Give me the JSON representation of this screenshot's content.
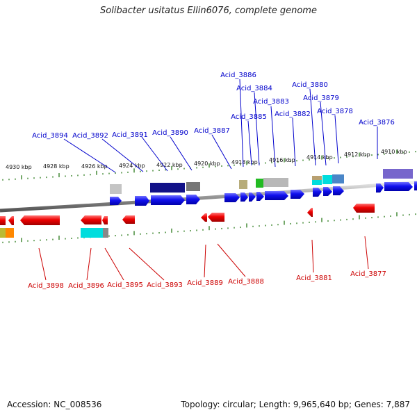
{
  "title": "Solibacter usitatus Ellin6076, complete genome",
  "footer": {
    "accession": "Accession: NC_008536",
    "summary": "Topology: circular; Length: 9,965,640 bp; Genes: 7,887"
  },
  "colors": {
    "forward_gene": "#0000ee",
    "reverse_gene": "#ee0000",
    "forward_label": "#0000cc",
    "reverse_label": "#cc0000",
    "tick": "#2a7a1a",
    "backbone": "#9a9a9a"
  },
  "scale_labels": [
    "4930 kbp",
    "4928 kbp",
    "4926 kbp",
    "4924 kbp",
    "4922 kbp",
    "4920 kbp",
    "4918 kbp",
    "4916 kbp",
    "4914 kbp",
    "4912 kbp",
    "4910 kbp"
  ],
  "forward_labels": [
    "Acid_3886",
    "Acid_3884",
    "Acid_3883",
    "Acid_3885",
    "Acid_3880",
    "Acid_3879",
    "Acid_3882",
    "Acid_3878",
    "Acid_3876",
    "Acid_3894",
    "Acid_3892",
    "Acid_3891",
    "Acid_3890",
    "Acid_3887"
  ],
  "reverse_labels": [
    "Acid_3898",
    "Acid_3896",
    "Acid_3895",
    "Acid_3893",
    "Acid_3889",
    "Acid_3888",
    "Acid_3881",
    "Acid_3877"
  ]
}
